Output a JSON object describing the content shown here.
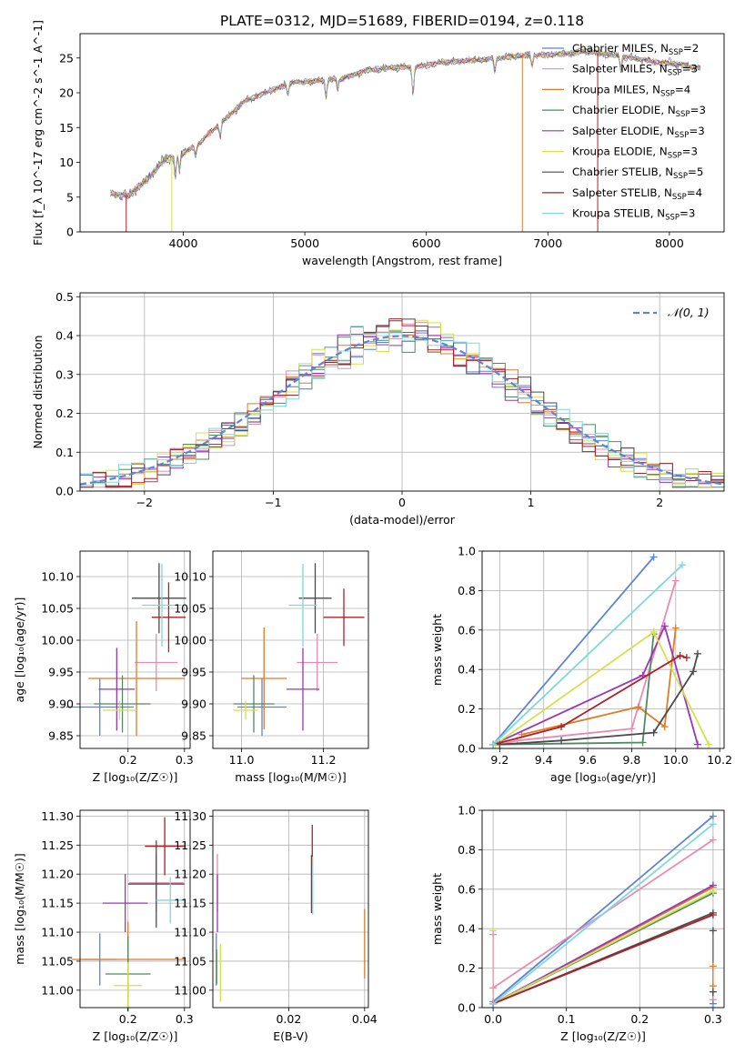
{
  "title": "PLATE=0312, MJD=51689, FIBERID=0194, z=0.118",
  "colors": {
    "chabrier_miles": "#5b84d6",
    "salpeter_miles": "#e88ab4",
    "kroupa_miles": "#e07b27",
    "chabrier_elodie": "#4f8a5f",
    "salpeter_elodie": "#9b35b8",
    "kroupa_elodie": "#d4e24a",
    "chabrier_stelib": "#4a4a4a",
    "salpeter_stelib": "#b11f27",
    "kroupa_stelib": "#7fd7dd",
    "gaussian": "#5b84d6",
    "grid": "#b0b0b0"
  },
  "chart_data": [
    {
      "id": "spectrum",
      "type": "line",
      "xlabel": "wavelength [Angstrom, rest frame]",
      "ylabel": "Flux [f_λ 10^-17 erg cm^-2 s^-1 A^-1]",
      "xlim": [
        3150,
        8450
      ],
      "ylim": [
        0,
        28.5
      ],
      "xticks": [
        4000,
        5000,
        6000,
        7000,
        8000
      ],
      "yticks": [
        0,
        5,
        10,
        15,
        20,
        25
      ],
      "grid": false,
      "legend_position": "upper right",
      "x_range_data": [
        3400,
        8260
      ],
      "continuum": [
        [
          3400,
          5.5
        ],
        [
          3550,
          5.2
        ],
        [
          3700,
          7.5
        ],
        [
          3850,
          10.5
        ],
        [
          3950,
          11.0
        ],
        [
          4100,
          12.3
        ],
        [
          4300,
          15.5
        ],
        [
          4500,
          18.8
        ],
        [
          4700,
          20.2
        ],
        [
          4900,
          21.5
        ],
        [
          5100,
          21.7
        ],
        [
          5300,
          22.0
        ],
        [
          5500,
          23.2
        ],
        [
          5700,
          23.6
        ],
        [
          5900,
          23.7
        ],
        [
          6100,
          24.3
        ],
        [
          6300,
          24.6
        ],
        [
          6500,
          24.8
        ],
        [
          6700,
          25.2
        ],
        [
          6900,
          25.4
        ],
        [
          7100,
          25.5
        ],
        [
          7300,
          26.0
        ],
        [
          7500,
          25.5
        ],
        [
          7700,
          25.0
        ],
        [
          7900,
          24.4
        ],
        [
          8100,
          24.0
        ],
        [
          8260,
          23.5
        ]
      ],
      "series": [
        {
          "name": "Chabrier MILES, N_SSP=2",
          "label_main": "Chabrier MILES, N",
          "label_sub": "SSP",
          "label_end": "=2",
          "color_key": "chabrier_miles"
        },
        {
          "name": "Salpeter MILES, N_SSP=3",
          "label_main": "Salpeter MILES, N",
          "label_sub": "SSP",
          "label_end": "=3",
          "color_key": "salpeter_miles"
        },
        {
          "name": "Kroupa MILES, N_SSP=4",
          "label_main": "Kroupa MILES, N",
          "label_sub": "SSP",
          "label_end": "=4",
          "color_key": "kroupa_miles"
        },
        {
          "name": "Chabrier ELODIE, N_SSP=3",
          "label_main": "Chabrier ELODIE, N",
          "label_sub": "SSP",
          "label_end": "=3",
          "color_key": "chabrier_elodie"
        },
        {
          "name": "Salpeter ELODIE, N_SSP=3",
          "label_main": "Salpeter ELODIE, N",
          "label_sub": "SSP",
          "label_end": "=3",
          "color_key": "salpeter_elodie"
        },
        {
          "name": "Kroupa ELODIE, N_SSP=3",
          "label_main": "Kroupa ELODIE, N",
          "label_sub": "SSP",
          "label_end": "=3",
          "color_key": "kroupa_elodie"
        },
        {
          "name": "Chabrier STELIB, N_SSP=5",
          "label_main": "Chabrier STELIB, N",
          "label_sub": "SSP",
          "label_end": "=5",
          "color_key": "chabrier_stelib"
        },
        {
          "name": "Salpeter STELIB, N_SSP=4",
          "label_main": "Salpeter STELIB, N",
          "label_sub": "SSP",
          "label_end": "=4",
          "color_key": "salpeter_stelib"
        },
        {
          "name": "Kroupa STELIB, N_SSP=3",
          "label_main": "Kroupa STELIB, N",
          "label_sub": "SSP",
          "label_end": "=3",
          "color_key": "kroupa_stelib"
        }
      ],
      "drops": [
        {
          "x": 3530,
          "color_key": "salpeter_stelib"
        },
        {
          "x": 3905,
          "color_key": "kroupa_elodie"
        },
        {
          "x": 6790,
          "color_key": "kroupa_miles"
        },
        {
          "x": 7410,
          "color_key": "salpeter_stelib"
        }
      ]
    },
    {
      "id": "residuals",
      "type": "histogram",
      "xlabel": "(data-model)/error",
      "ylabel": "Normed distribution",
      "xlim": [
        -2.5,
        2.5
      ],
      "ylim": [
        0,
        0.51
      ],
      "xticks": [
        -2,
        -1,
        0,
        1,
        2
      ],
      "xtick_labels": [
        "−2",
        "−1",
        "0",
        "1",
        "2"
      ],
      "yticks": [
        0.0,
        0.1,
        0.2,
        0.3,
        0.4,
        0.5
      ],
      "grid": true,
      "bin_width": 0.1,
      "gaussian_label": "𝒩(0, 1)",
      "legend_position": "upper right"
    },
    {
      "id": "age_vs_Z",
      "type": "errorbar",
      "xlabel": "Z [log₁₀(Z/Z☉)]",
      "ylabel": "age  [log₁₀(age/yr)]",
      "xlim": [
        0.115,
        0.31
      ],
      "ylim": [
        9.83,
        10.14
      ],
      "xticks": [
        0.2,
        0.3
      ],
      "yticks": [
        9.85,
        9.9,
        9.95,
        10.0,
        10.05,
        10.1
      ],
      "grid": true,
      "points": [
        {
          "x": 0.15,
          "xerr": 0.06,
          "y": 9.895,
          "yerr": 0.045,
          "color_key": "chabrier_miles"
        },
        {
          "x": 0.25,
          "xerr": 0.038,
          "y": 9.965,
          "yerr": 0.045,
          "color_key": "salpeter_miles"
        },
        {
          "x": 0.215,
          "xerr": 0.085,
          "y": 9.94,
          "yerr": 0.09,
          "color_key": "kroupa_miles"
        },
        {
          "x": 0.19,
          "xerr": 0.05,
          "y": 9.9,
          "yerr": 0.045,
          "color_key": "chabrier_elodie"
        },
        {
          "x": 0.18,
          "xerr": 0.032,
          "y": 9.923,
          "yerr": 0.065,
          "color_key": "salpeter_elodie"
        },
        {
          "x": 0.185,
          "xerr": 0.03,
          "y": 9.89,
          "yerr": 0.015,
          "color_key": "kroupa_elodie"
        },
        {
          "x": 0.255,
          "xerr": 0.048,
          "y": 10.066,
          "yerr": 0.055,
          "color_key": "chabrier_stelib"
        },
        {
          "x": 0.272,
          "xerr": 0.03,
          "y": 10.036,
          "yerr": 0.055,
          "color_key": "salpeter_stelib"
        },
        {
          "x": 0.26,
          "xerr": 0.035,
          "y": 10.055,
          "yerr": 0.065,
          "color_key": "kroupa_stelib"
        }
      ]
    },
    {
      "id": "age_vs_mass",
      "type": "errorbar",
      "xlabel": "mass [log₁₀(M/M☉)]",
      "ylabel": "",
      "xlim": [
        10.93,
        11.31
      ],
      "ylim": [
        9.83,
        10.14
      ],
      "xticks": [
        11.0,
        11.2
      ],
      "yticks": [
        9.85,
        9.9,
        9.95,
        10.0,
        10.05,
        10.1
      ],
      "grid": true,
      "points": [
        {
          "x": 11.05,
          "xerr": 0.06,
          "y": 9.895,
          "yerr": 0.045,
          "color_key": "chabrier_miles"
        },
        {
          "x": 11.185,
          "xerr": 0.05,
          "y": 9.965,
          "yerr": 0.045,
          "color_key": "salpeter_miles"
        },
        {
          "x": 11.055,
          "xerr": 0.055,
          "y": 9.94,
          "yerr": 0.08,
          "color_key": "kroupa_miles"
        },
        {
          "x": 11.03,
          "xerr": 0.05,
          "y": 9.9,
          "yerr": 0.045,
          "color_key": "chabrier_elodie"
        },
        {
          "x": 11.15,
          "xerr": 0.04,
          "y": 9.923,
          "yerr": 0.065,
          "color_key": "salpeter_elodie"
        },
        {
          "x": 11.01,
          "xerr": 0.03,
          "y": 9.89,
          "yerr": 0.015,
          "color_key": "kroupa_elodie"
        },
        {
          "x": 11.18,
          "xerr": 0.04,
          "y": 10.066,
          "yerr": 0.055,
          "color_key": "chabrier_stelib"
        },
        {
          "x": 11.25,
          "xerr": 0.05,
          "y": 10.036,
          "yerr": 0.045,
          "color_key": "salpeter_stelib"
        },
        {
          "x": 11.15,
          "xerr": 0.035,
          "y": 10.055,
          "yerr": 0.065,
          "color_key": "kroupa_stelib"
        }
      ]
    },
    {
      "id": "mass_weight_vs_age",
      "type": "line",
      "xlabel": "age  [log₁₀(age/yr)]",
      "ylabel": "mass weight",
      "xlim": [
        9.12,
        10.22
      ],
      "ylim": [
        0,
        1.0
      ],
      "xticks": [
        9.2,
        9.4,
        9.6,
        9.8,
        10.0,
        10.2
      ],
      "yticks": [
        0.0,
        0.2,
        0.4,
        0.6,
        0.8,
        1.0
      ],
      "grid": true,
      "series": [
        {
          "color_key": "chabrier_miles",
          "points": [
            [
              9.17,
              0.02
            ],
            [
              9.9,
              0.97
            ]
          ]
        },
        {
          "color_key": "salpeter_miles",
          "points": [
            [
              9.2,
              0.02
            ],
            [
              9.28,
              0.04
            ],
            [
              9.8,
              0.1
            ],
            [
              10.0,
              0.85
            ]
          ]
        },
        {
          "color_key": "kroupa_miles",
          "points": [
            [
              9.3,
              0.07
            ],
            [
              9.83,
              0.21
            ],
            [
              9.95,
              0.11
            ],
            [
              10.0,
              0.61
            ]
          ]
        },
        {
          "color_key": "chabrier_elodie",
          "points": [
            [
              9.17,
              0.02
            ],
            [
              9.85,
              0.03
            ],
            [
              9.9,
              0.58
            ]
          ]
        },
        {
          "color_key": "salpeter_elodie",
          "points": [
            [
              9.17,
              0.02
            ],
            [
              9.85,
              0.37
            ],
            [
              9.95,
              0.62
            ],
            [
              10.1,
              0.02
            ]
          ]
        },
        {
          "color_key": "kroupa_elodie",
          "points": [
            [
              9.18,
              0.02
            ],
            [
              9.9,
              0.59
            ],
            [
              10.15,
              0.02
            ]
          ]
        },
        {
          "color_key": "chabrier_stelib",
          "points": [
            [
              9.2,
              0.02
            ],
            [
              9.48,
              0.04
            ],
            [
              9.9,
              0.08
            ],
            [
              10.08,
              0.39
            ],
            [
              10.1,
              0.48
            ]
          ]
        },
        {
          "color_key": "salpeter_stelib",
          "points": [
            [
              9.17,
              0.02
            ],
            [
              9.48,
              0.11
            ],
            [
              10.02,
              0.47
            ],
            [
              10.05,
              0.46
            ]
          ]
        },
        {
          "color_key": "kroupa_stelib",
          "points": [
            [
              9.17,
              0.02
            ],
            [
              10.03,
              0.93
            ]
          ]
        }
      ]
    },
    {
      "id": "mass_vs_Z",
      "type": "errorbar",
      "xlabel": "Z [log₁₀(Z/Z☉)]",
      "ylabel": "mass [log₁₀(M/M☉)]",
      "xlim": [
        0.115,
        0.31
      ],
      "ylim": [
        10.97,
        11.31
      ],
      "xticks": [
        0.2,
        0.3
      ],
      "yticks": [
        11.0,
        11.05,
        11.1,
        11.15,
        11.2,
        11.25,
        11.3
      ],
      "grid": true,
      "points": [
        {
          "x": 0.15,
          "xerr": 0.03,
          "y": 11.053,
          "yerr": 0.045,
          "color_key": "chabrier_miles"
        },
        {
          "x": 0.25,
          "xerr": 0.048,
          "y": 11.185,
          "yerr": 0.05,
          "color_key": "salpeter_miles"
        },
        {
          "x": 0.2,
          "xerr": 0.1,
          "y": 11.053,
          "yerr": 0.065,
          "color_key": "kroupa_miles"
        },
        {
          "x": 0.2,
          "xerr": 0.04,
          "y": 11.028,
          "yerr": 0.065,
          "color_key": "chabrier_elodie"
        },
        {
          "x": 0.195,
          "xerr": 0.04,
          "y": 11.15,
          "yerr": 0.05,
          "color_key": "salpeter_elodie"
        },
        {
          "x": 0.2,
          "xerr": 0.025,
          "y": 11.008,
          "yerr": 0.04,
          "color_key": "kroupa_elodie"
        },
        {
          "x": 0.25,
          "xerr": 0.05,
          "y": 11.183,
          "yerr": 0.075,
          "color_key": "chabrier_stelib"
        },
        {
          "x": 0.265,
          "xerr": 0.035,
          "y": 11.248,
          "yerr": 0.05,
          "color_key": "salpeter_stelib"
        },
        {
          "x": 0.275,
          "xerr": 0.025,
          "y": 11.155,
          "yerr": 0.04,
          "color_key": "kroupa_stelib"
        }
      ]
    },
    {
      "id": "mass_vs_EBV",
      "type": "errorbar",
      "xlabel": "E(B-V)",
      "ylabel": "",
      "xlim": [
        0.0,
        0.041
      ],
      "ylim": [
        10.97,
        11.31
      ],
      "xticks": [
        0.02,
        0.04
      ],
      "yticks": [
        11.0,
        11.05,
        11.1,
        11.15,
        11.2,
        11.25,
        11.3
      ],
      "grid": true,
      "points": [
        {
          "x": 0.0009,
          "xerr": 0,
          "y": 11.053,
          "yerr": 0.045,
          "color_key": "chabrier_miles"
        },
        {
          "x": 0.0012,
          "xerr": 0,
          "y": 11.185,
          "yerr": 0.05,
          "color_key": "salpeter_miles"
        },
        {
          "x": 0.04,
          "xerr": 0,
          "y": 11.08,
          "yerr": 0.06,
          "color_key": "kroupa_miles"
        },
        {
          "x": 0.001,
          "xerr": 0,
          "y": 11.04,
          "yerr": 0.03,
          "color_key": "chabrier_elodie"
        },
        {
          "x": 0.0012,
          "xerr": 0,
          "y": 11.15,
          "yerr": 0.05,
          "color_key": "salpeter_elodie"
        },
        {
          "x": 0.002,
          "xerr": 0,
          "y": 11.03,
          "yerr": 0.05,
          "color_key": "kroupa_elodie"
        },
        {
          "x": 0.026,
          "xerr": 0,
          "y": 11.183,
          "yerr": 0.05,
          "color_key": "chabrier_stelib"
        },
        {
          "x": 0.0262,
          "xerr": 0,
          "y": 11.25,
          "yerr": 0.035,
          "color_key": "salpeter_stelib"
        },
        {
          "x": 0.0263,
          "xerr": 0,
          "y": 11.18,
          "yerr": 0.05,
          "color_key": "kroupa_stelib"
        }
      ]
    },
    {
      "id": "mass_weight_vs_Z",
      "type": "line",
      "xlabel": "Z [log₁₀(Z/Z☉)]",
      "ylabel": "mass weight",
      "xlim": [
        -0.015,
        0.315
      ],
      "ylim": [
        0,
        1.0
      ],
      "xticks": [
        0.0,
        0.1,
        0.2,
        0.3
      ],
      "yticks": [
        0.0,
        0.2,
        0.4,
        0.6,
        0.8,
        1.0
      ],
      "grid": true,
      "series": [
        {
          "color_key": "chabrier_miles",
          "points": [
            [
              0.0,
              0.03
            ],
            [
              0.3,
              0.97
            ]
          ]
        },
        {
          "color_key": "salpeter_miles",
          "points": [
            [
              0.0,
              0.1
            ],
            [
              0.3,
              0.85
            ]
          ]
        },
        {
          "color_key": "kroupa_miles",
          "points": [
            [
              0.0,
              0.02
            ],
            [
              0.3,
              0.61
            ]
          ]
        },
        {
          "color_key": "chabrier_elodie",
          "points": [
            [
              0.0,
              0.02
            ],
            [
              0.3,
              0.58
            ]
          ]
        },
        {
          "color_key": "salpeter_elodie",
          "points": [
            [
              0.0,
              0.02
            ],
            [
              0.3,
              0.62
            ]
          ]
        },
        {
          "color_key": "kroupa_elodie",
          "points": [
            [
              0.0,
              0.02
            ],
            [
              0.3,
              0.59
            ]
          ]
        },
        {
          "color_key": "chabrier_stelib",
          "points": [
            [
              0.0,
              0.02
            ],
            [
              0.3,
              0.48
            ]
          ]
        },
        {
          "color_key": "salpeter_stelib",
          "points": [
            [
              0.0,
              0.02
            ],
            [
              0.3,
              0.47
            ]
          ]
        },
        {
          "color_key": "kroupa_stelib",
          "points": [
            [
              0.0,
              0.02
            ],
            [
              0.3,
              0.93
            ]
          ]
        }
      ],
      "markers": [
        {
          "x": 0.0,
          "y": 0.39,
          "color_key": "kroupa_elodie"
        },
        {
          "x": 0.0,
          "y": 0.37,
          "color_key": "salpeter_miles"
        },
        {
          "x": 0.3,
          "y": 0.39,
          "color_key": "chabrier_stelib"
        },
        {
          "x": 0.3,
          "y": 0.21,
          "color_key": "kroupa_miles"
        },
        {
          "x": 0.3,
          "y": 0.11,
          "color_key": "kroupa_miles"
        },
        {
          "x": 0.3,
          "y": 0.08,
          "color_key": "chabrier_stelib"
        },
        {
          "x": 0.3,
          "y": 0.04,
          "color_key": "salpeter_miles"
        },
        {
          "x": 0.3,
          "y": 0.02,
          "color_key": "chabrier_miles"
        }
      ]
    }
  ]
}
